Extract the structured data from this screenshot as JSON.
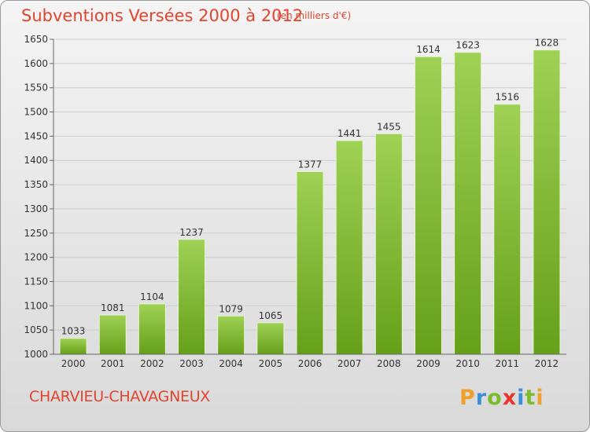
{
  "header": {
    "title": "Subventions Versées 2000 à 2012",
    "unit_note": "(en milliers d'€)"
  },
  "footer": {
    "commune": "CHARVIEU-CHAVAGNEUX",
    "logo_text": "Proxiti"
  },
  "colors": {
    "title": "#e0452f",
    "bar_top": "#9fd155",
    "bar_bottom": "#66a019",
    "grid": "#cccccc",
    "logo_letters": [
      "#f0a02a",
      "#3a8fd8",
      "#7cbc2c",
      "#e8342a",
      "#3a8fd8",
      "#7cbc2c",
      "#f0a02a"
    ]
  },
  "chart_data": {
    "type": "bar",
    "title": "Subventions Versées 2000 à 2012",
    "subtitle": "(en milliers d'€)",
    "xlabel": "",
    "ylabel": "",
    "ylim": [
      1000,
      1650
    ],
    "yticks": [
      1000,
      1050,
      1100,
      1150,
      1200,
      1250,
      1300,
      1350,
      1400,
      1450,
      1500,
      1550,
      1600,
      1650
    ],
    "grid": true,
    "categories": [
      "2000",
      "2001",
      "2002",
      "2003",
      "2004",
      "2005",
      "2006",
      "2007",
      "2008",
      "2009",
      "2010",
      "2011",
      "2012"
    ],
    "values": [
      1033,
      1081,
      1104,
      1237,
      1079,
      1065,
      1377,
      1441,
      1455,
      1614,
      1623,
      1516,
      1628
    ]
  }
}
